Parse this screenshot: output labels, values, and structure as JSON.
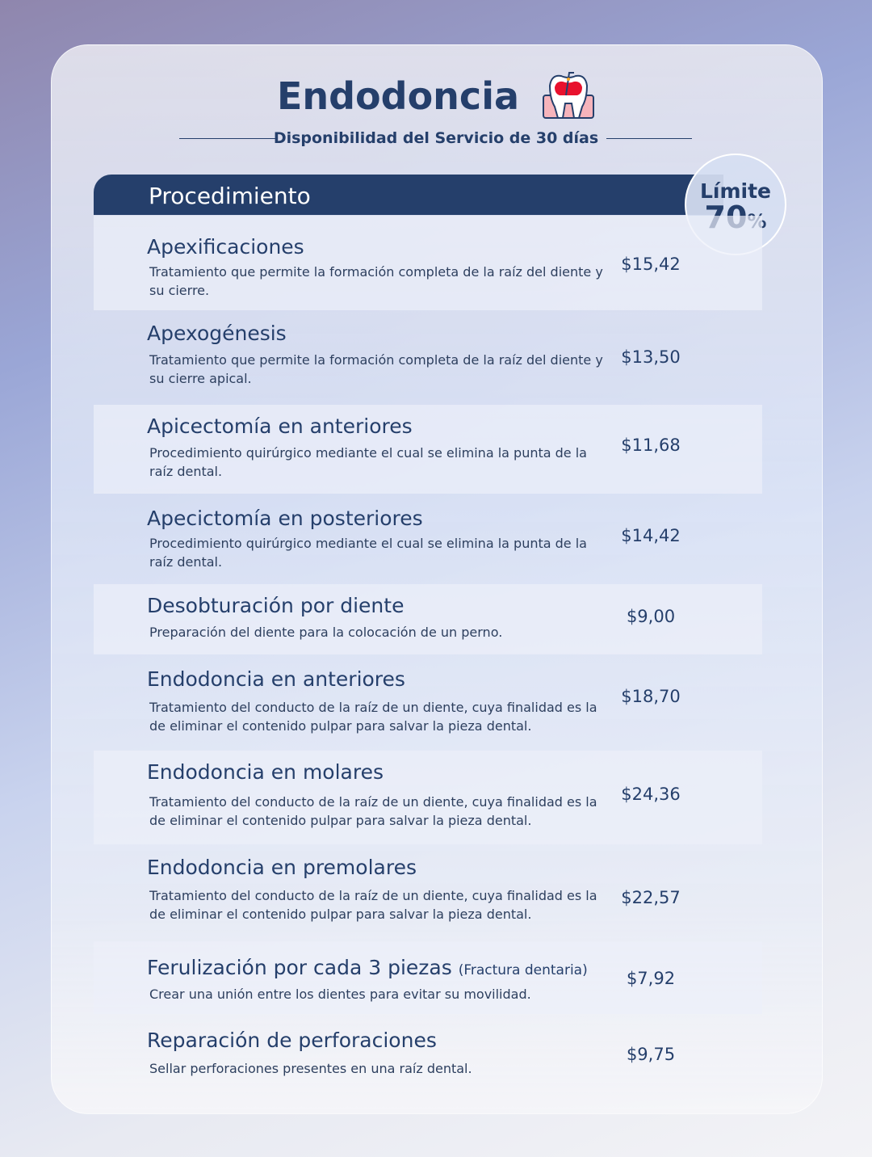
{
  "title": "Endodoncia",
  "subtitle": "Disponibilidad del Servicio de 30 días",
  "header": "Procedimiento",
  "badge": {
    "label": "Límite",
    "value": "70",
    "unit": "%"
  },
  "items": [
    {
      "name": "Apexificaciones",
      "note": "",
      "desc": "Tratamiento que permite la formación completa de la raíz del diente y su cierre.",
      "price": "$15,42"
    },
    {
      "name": "Apexogénesis",
      "note": "",
      "desc": "Tratamiento que permite la formación completa de la raíz del diente y su cierre apical.",
      "price": "$13,50"
    },
    {
      "name": "Apicectomía en anteriores",
      "note": "",
      "desc": "Procedimiento quirúrgico mediante el cual se elimina la punta de la raíz dental.",
      "price": "$11,68"
    },
    {
      "name": "Apecictomía en posteriores",
      "note": "",
      "desc": "Procedimiento quirúrgico mediante el cual se elimina la punta de la raíz dental.",
      "price": "$14,42"
    },
    {
      "name": "Desobturación por diente",
      "note": "",
      "desc": "Preparación del diente para la colocación de un perno.",
      "price": "$9,00"
    },
    {
      "name": "Endodoncia en anteriores",
      "note": "",
      "desc": "Tratamiento del conducto de la raíz de un diente, cuya finalidad es la de eliminar el contenido pulpar para salvar la pieza dental.",
      "price": "$18,70"
    },
    {
      "name": "Endodoncia en molares",
      "note": "",
      "desc": "Tratamiento del conducto de la raíz de un diente, cuya finalidad es la de eliminar el contenido pulpar para salvar la pieza dental.",
      "price": "$24,36"
    },
    {
      "name": "Endodoncia en premolares",
      "note": "",
      "desc": "Tratamiento del conducto de la raíz de un diente, cuya finalidad es la de eliminar el contenido pulpar para salvar la pieza dental.",
      "price": "$22,57"
    },
    {
      "name": "Ferulización por cada 3 piezas",
      "note": "(Fractura dentaria)",
      "desc": "Crear una unión entre los dientes para evitar su movilidad.",
      "price": "$7,92"
    },
    {
      "name": "Reparación de perforaciones",
      "note": "",
      "desc": "Sellar perforaciones presentes en una raíz dental.",
      "price": "$9,75"
    }
  ]
}
